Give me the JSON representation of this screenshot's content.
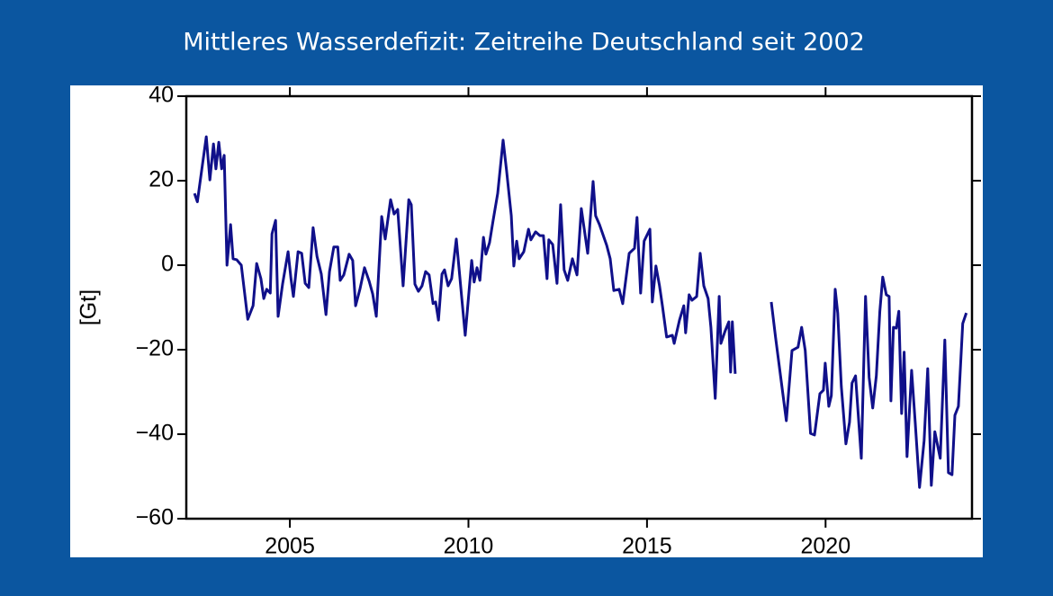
{
  "chart_data": {
    "type": "line",
    "title": "Mittleres Wasserdefizit: Zeitreihe Deutschland seit 2002",
    "ylabel": "[Gt]",
    "color": "#10108a",
    "xlim": [
      2002.1,
      2024.1
    ],
    "xticks": [
      2005,
      2010,
      2015,
      2020
    ],
    "ylim": [
      -60,
      40
    ],
    "yticks": [
      {
        "value": -60,
        "label": "−60"
      },
      {
        "value": -40,
        "label": "−40"
      },
      {
        "value": -20,
        "label": "−20"
      },
      0,
      20,
      40
    ],
    "x": [
      2002.33,
      2002.41,
      2002.66,
      2002.76,
      2002.86,
      2002.93,
      2003.01,
      2003.09,
      2003.16,
      2003.24,
      2003.34,
      2003.41,
      2003.51,
      2003.64,
      2003.82,
      2003.97,
      2004.07,
      2004.19,
      2004.27,
      2004.35,
      2004.45,
      2004.5,
      2004.6,
      2004.67,
      2004.8,
      2004.95,
      2005.03,
      2005.1,
      2005.23,
      2005.33,
      2005.43,
      2005.53,
      2005.65,
      2005.76,
      2005.88,
      2006.01,
      2006.11,
      2006.23,
      2006.34,
      2006.41,
      2006.51,
      2006.66,
      2006.76,
      2006.84,
      2006.96,
      2007.09,
      2007.22,
      2007.32,
      2007.42,
      2007.57,
      2007.67,
      2007.82,
      2007.92,
      2008.02,
      2008.17,
      2008.33,
      2008.4,
      2008.5,
      2008.6,
      2008.7,
      2008.8,
      2008.9,
      2009.01,
      2009.08,
      2009.16,
      2009.26,
      2009.33,
      2009.43,
      2009.53,
      2009.66,
      2009.74,
      2009.81,
      2009.91,
      2010.09,
      2010.16,
      2010.24,
      2010.32,
      2010.42,
      2010.49,
      2010.59,
      2010.69,
      2010.82,
      2010.97,
      2011.07,
      2011.2,
      2011.27,
      2011.35,
      2011.42,
      2011.55,
      2011.68,
      2011.75,
      2011.88,
      2012.0,
      2012.1,
      2012.2,
      2012.25,
      2012.36,
      2012.48,
      2012.58,
      2012.68,
      2012.78,
      2012.91,
      2013.04,
      2013.16,
      2013.34,
      2013.49,
      2013.56,
      2013.67,
      2013.87,
      2013.97,
      2014.07,
      2014.22,
      2014.32,
      2014.5,
      2014.65,
      2014.72,
      2014.82,
      2014.92,
      2015.08,
      2015.15,
      2015.25,
      2015.35,
      2015.43,
      2015.55,
      2015.71,
      2015.76,
      2015.91,
      2016.03,
      2016.08,
      2016.18,
      2016.26,
      2016.39,
      2016.49,
      2016.59,
      2016.71,
      2016.79,
      2016.91,
      2017.02,
      2017.07,
      2017.19,
      2017.29,
      2017.34,
      2017.39,
      2017.47,
      2018.0,
      2018.48,
      2018.6,
      2018.9,
      2019.06,
      2019.23,
      2019.33,
      2019.43,
      2019.58,
      2019.69,
      2019.84,
      2019.94,
      2019.99,
      2020.09,
      2020.16,
      2020.27,
      2020.34,
      2020.44,
      2020.57,
      2020.67,
      2020.74,
      2020.84,
      2021.0,
      2021.12,
      2021.22,
      2021.32,
      2021.42,
      2021.52,
      2021.6,
      2021.7,
      2021.78,
      2021.83,
      2021.9,
      2021.98,
      2022.05,
      2022.13,
      2022.2,
      2022.28,
      2022.41,
      2022.51,
      2022.63,
      2022.76,
      2022.86,
      2022.96,
      2023.06,
      2023.21,
      2023.34,
      2023.44,
      2023.54,
      2023.62,
      2023.72,
      2023.84,
      2023.94
    ],
    "values": [
      17,
      15,
      30.4,
      20.2,
      28.7,
      22.8,
      29.1,
      22.8,
      26,
      0,
      9.6,
      1.5,
      1.3,
      0,
      -12.8,
      -9.6,
      0.4,
      -3.2,
      -7.9,
      -5.7,
      -6.6,
      7.4,
      10.6,
      -12.1,
      -4.3,
      3.2,
      -3.2,
      -7.4,
      3.2,
      2.8,
      -4.3,
      -5.3,
      8.9,
      2.1,
      -2.1,
      -11.7,
      -1.5,
      4.3,
      4.3,
      -3.6,
      -2.3,
      2.6,
      1.1,
      -9.6,
      -5.7,
      -0.6,
      -3.8,
      -6.8,
      -12.1,
      11.5,
      6.2,
      15.5,
      12.1,
      13.2,
      -4.9,
      15.5,
      14.3,
      -4.5,
      -6.2,
      -4.9,
      -1.5,
      -2.3,
      -9.1,
      -8.7,
      -13,
      -2.1,
      -1.1,
      -4.9,
      -3.2,
      6.2,
      -1.1,
      -7.4,
      -16.6,
      1.1,
      -4,
      -0.6,
      -3.6,
      6.6,
      2.6,
      5.3,
      10.6,
      17,
      29.6,
      22.3,
      11.7,
      -0.2,
      5.7,
      1.5,
      3.2,
      8.5,
      6,
      7.9,
      7,
      7,
      -3.2,
      6,
      4.9,
      -4.3,
      14.3,
      -1.1,
      -3.6,
      1.5,
      -2.3,
      13.4,
      2.8,
      19.8,
      11.7,
      9.6,
      4.7,
      1.5,
      -6,
      -5.7,
      -9.1,
      2.8,
      4,
      11.3,
      -6.6,
      5.7,
      8.5,
      -8.7,
      -0.2,
      -4.9,
      -9.6,
      -17,
      -16.6,
      -18.5,
      -13,
      -9.6,
      -16,
      -7,
      -8.3,
      -7.4,
      2.8,
      -4.9,
      -7.9,
      -14.7,
      -31.5,
      -7.4,
      -18.5,
      -15.5,
      -13.4,
      -25.3,
      -13.4,
      -25.7,
      null,
      -8.7,
      -17.2,
      -36.8,
      -20.2,
      -19.4,
      -14.7,
      -20.2,
      -39.8,
      -40.2,
      -30.4,
      -29.6,
      -23.2,
      -33.4,
      -30.9,
      -5.7,
      -11.3,
      -28.7,
      -42.3,
      -37.2,
      -27.9,
      -26.2,
      -45.7,
      -7.4,
      -26.6,
      -33.8,
      -26.2,
      -10.9,
      -2.8,
      -7,
      -7.4,
      -32.1,
      -14.7,
      -14.9,
      -10.9,
      -35.1,
      -20.6,
      -45.3,
      -24.9,
      -37.2,
      -52.6,
      -41.5,
      -24.5,
      -52.1,
      -39.4,
      -45.7,
      -17.7,
      -49.1,
      -49.6,
      -35.5,
      -33.4,
      -13.8,
      -11.3
    ]
  }
}
